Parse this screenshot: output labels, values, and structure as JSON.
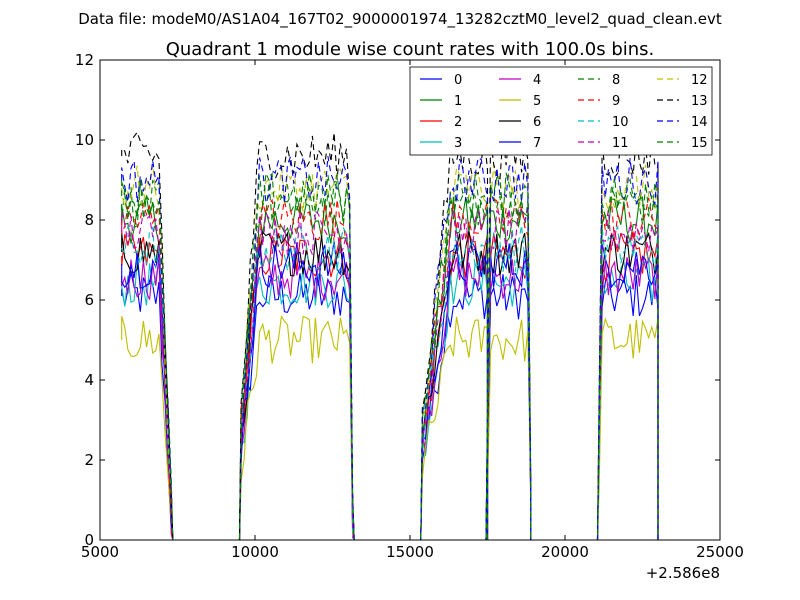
{
  "header": {
    "data_file": "Data file: modeM0/AS1A04_167T02_9000001974_13282cztM0_level2_quad_clean.evt"
  },
  "chart_data": {
    "type": "line",
    "title": "Quadrant 1 module wise count rates with 100.0s bins.",
    "xlabel": "",
    "ylabel": "",
    "xlim": [
      5000,
      25000
    ],
    "ylim": [
      0,
      12
    ],
    "x_offset_label": "+2.586e8",
    "x_ticks": [
      5000,
      10000,
      15000,
      20000,
      25000
    ],
    "x_tick_labels": [
      "5000",
      "10000",
      "15000",
      "20000",
      "25000"
    ],
    "y_ticks": [
      0,
      2,
      4,
      6,
      8,
      10,
      12
    ],
    "y_tick_labels": [
      "0",
      "2",
      "4",
      "6",
      "8",
      "10",
      "12"
    ],
    "grid": false,
    "legend_position": "top-right",
    "segments": [
      {
        "start": 5700,
        "end": 7300,
        "ramp_up": 0,
        "ramp_down": 0.25
      },
      {
        "start": 9550,
        "end": 13150,
        "ramp_up": 0.16,
        "ramp_down": 0.03
      },
      {
        "start": 15400,
        "end": 17450,
        "ramp_up": 0.45,
        "ramp_down": 0.0
      },
      {
        "start": 17500,
        "end": 18850,
        "ramp_up": 0.05,
        "ramp_down": 0.04
      },
      {
        "start": 21100,
        "end": 22950,
        "ramp_up": 0.04,
        "ramp_down": 0.0
      }
    ],
    "series": [
      {
        "name": "0",
        "color": "#0000ff",
        "dash": "solid",
        "level": 6.1
      },
      {
        "name": "1",
        "color": "#008000",
        "dash": "solid",
        "level": 8.0
      },
      {
        "name": "2",
        "color": "#ff0000",
        "dash": "solid",
        "level": 7.1
      },
      {
        "name": "3",
        "color": "#00bfbf",
        "dash": "solid",
        "level": 6.4
      },
      {
        "name": "4",
        "color": "#bf00bf",
        "dash": "solid",
        "level": 6.6
      },
      {
        "name": "5",
        "color": "#bfbf00",
        "dash": "solid",
        "level": 5.0
      },
      {
        "name": "6",
        "color": "#000000",
        "dash": "solid",
        "level": 7.2
      },
      {
        "name": "7",
        "color": "#0000ff",
        "dash": "solid",
        "level": 6.9
      },
      {
        "name": "8",
        "color": "#008000",
        "dash": "dashed",
        "level": 8.4
      },
      {
        "name": "9",
        "color": "#ff0000",
        "dash": "dashed",
        "level": 8.0
      },
      {
        "name": "10",
        "color": "#00bfbf",
        "dash": "dashed",
        "level": 7.3
      },
      {
        "name": "11",
        "color": "#bf00bf",
        "dash": "dashed",
        "level": 7.7
      },
      {
        "name": "12",
        "color": "#bfbf00",
        "dash": "dashed",
        "level": 8.8
      },
      {
        "name": "13",
        "color": "#000000",
        "dash": "dashed",
        "level": 9.6
      },
      {
        "name": "14",
        "color": "#0000ff",
        "dash": "dashed",
        "level": 9.0
      },
      {
        "name": "15",
        "color": "#008000",
        "dash": "dashed",
        "level": 8.6
      }
    ]
  }
}
